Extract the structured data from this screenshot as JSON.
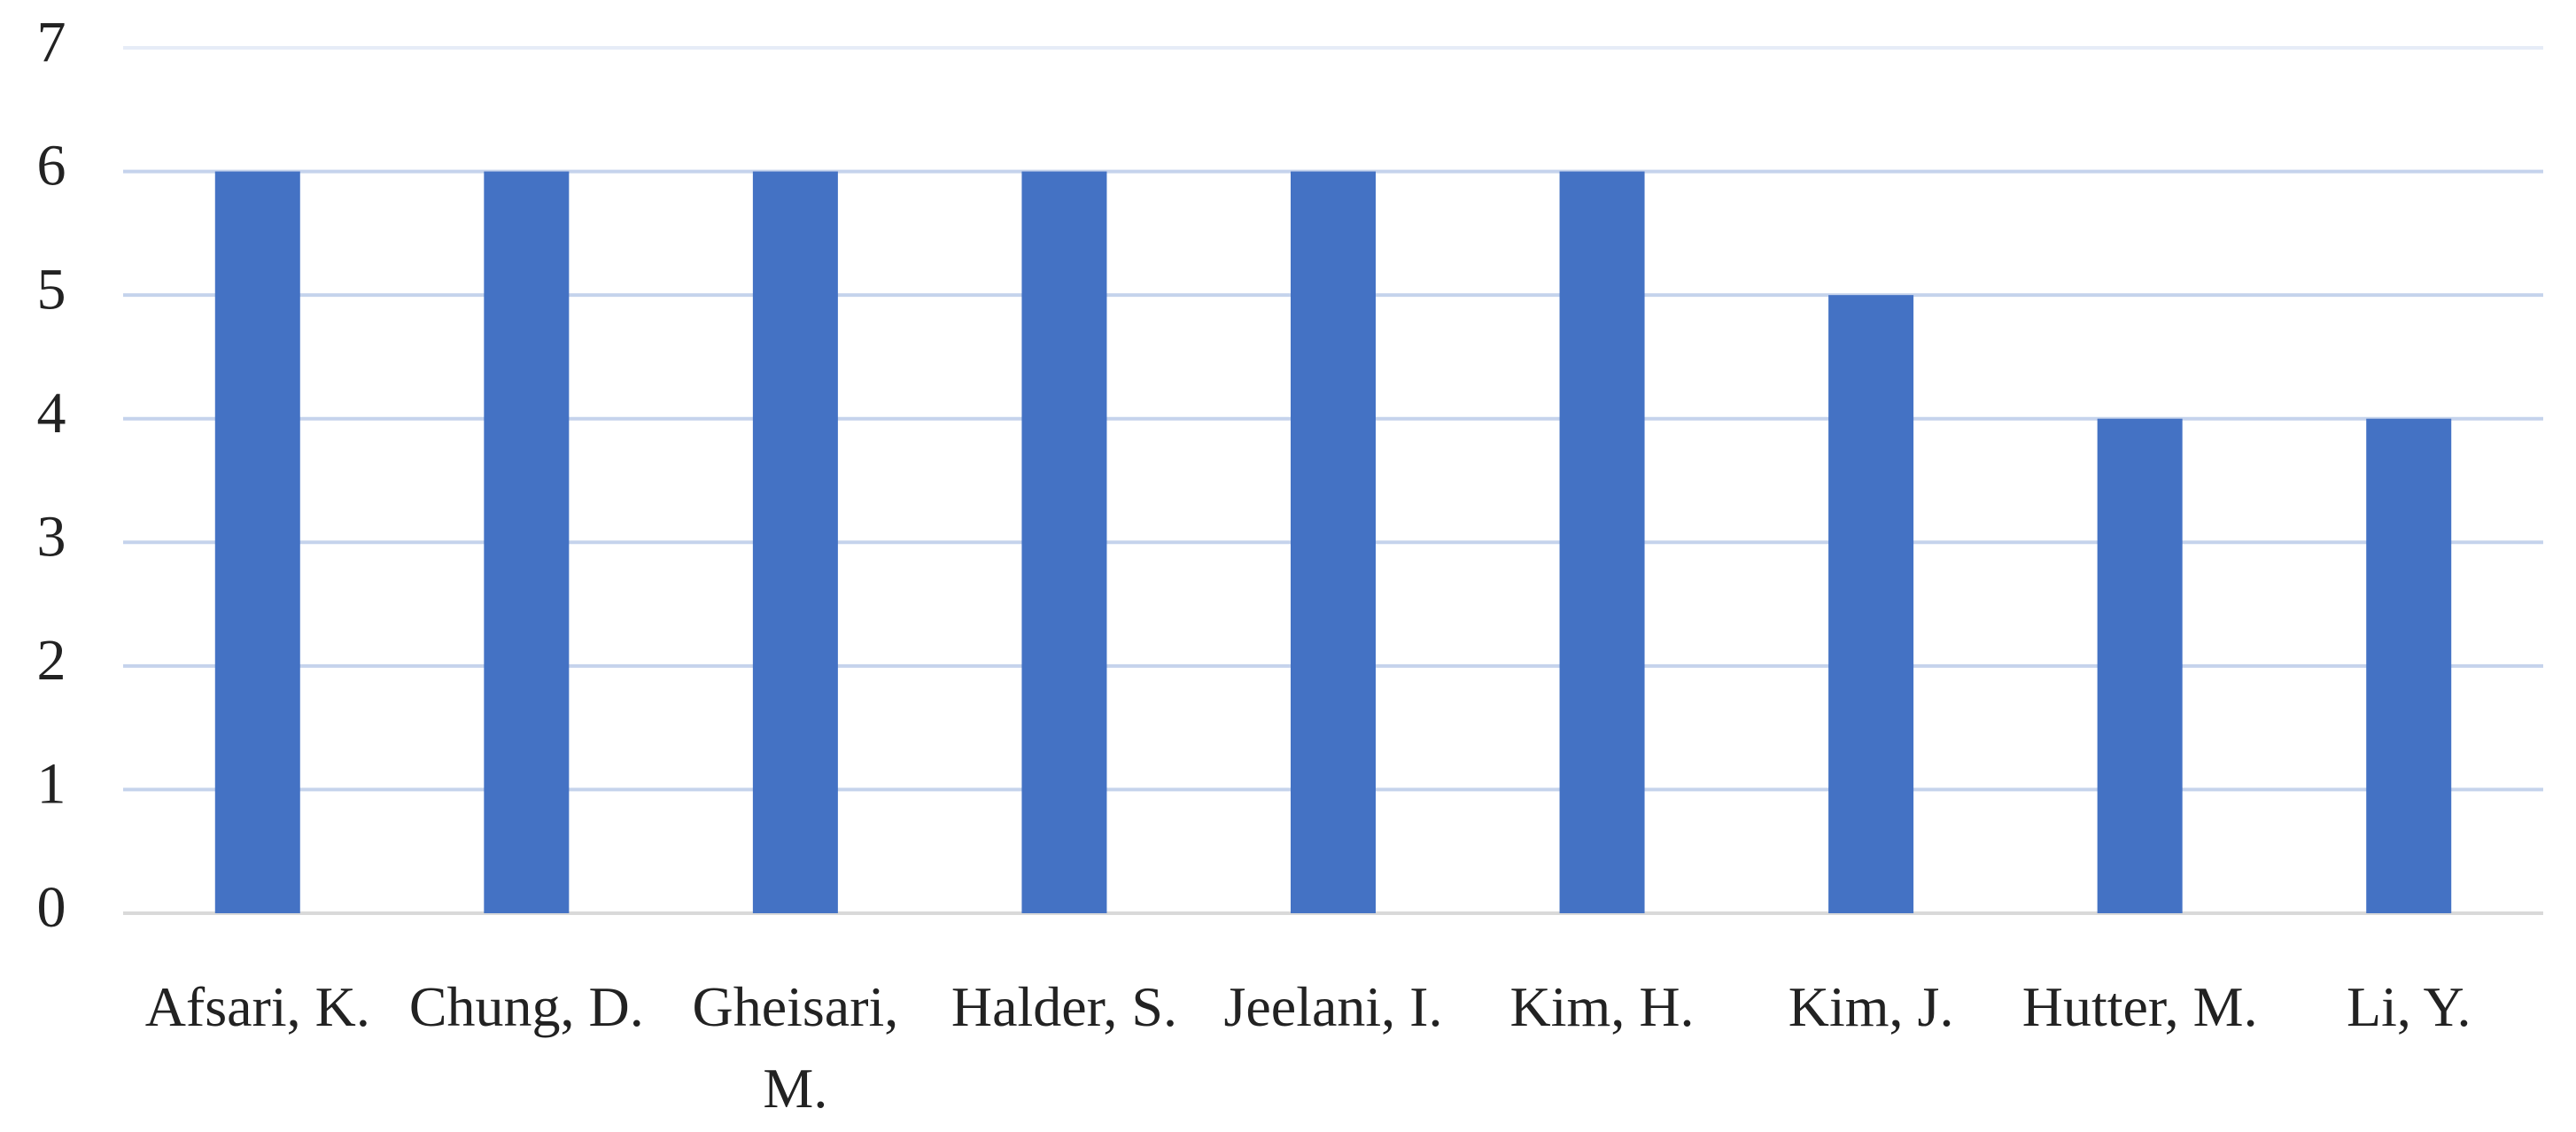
{
  "chart_data": {
    "type": "bar",
    "categories": [
      "Afsari, K.",
      "Chung, D.",
      "Gheisari, M.",
      "Halder, S.",
      "Jeelani, I.",
      "Kim, H.",
      "Kim, J.",
      "Hutter, M.",
      "Li, Y."
    ],
    "values": [
      6,
      6,
      6,
      6,
      6,
      6,
      5,
      4,
      4
    ],
    "color": "#4472c4",
    "ylim": [
      0,
      7
    ],
    "yticks": [
      0,
      1,
      2,
      3,
      4,
      5,
      6,
      7
    ],
    "grid": true
  }
}
